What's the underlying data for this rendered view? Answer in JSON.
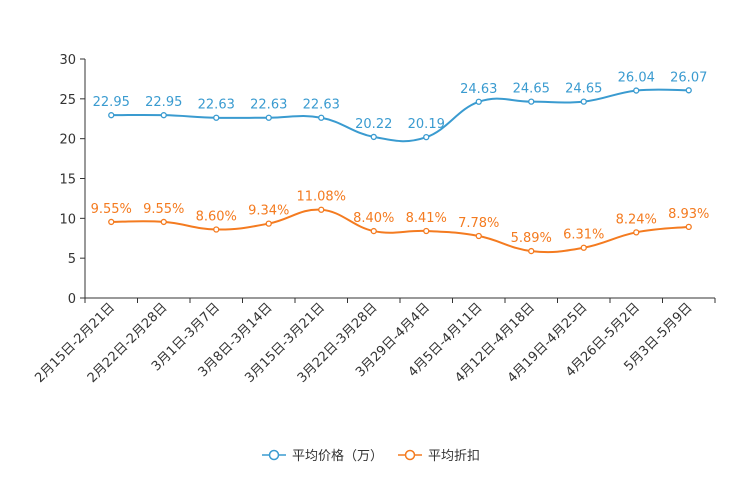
{
  "chart_data": {
    "type": "line",
    "categories": [
      "2月15日-2月21日",
      "2月22日-2月28日",
      "3月1日-3月7日",
      "3月8日-3月14日",
      "3月15日-3月21日",
      "3月22日-3月28日",
      "3月29日-4月4日",
      "4月5日-4月11日",
      "4月12日-4月18日",
      "4月19日-4月25日",
      "4月26日-5月2日",
      "5月3日-5月9日"
    ],
    "ylim": [
      0,
      30
    ],
    "yticks": [
      0,
      5,
      10,
      15,
      20,
      25,
      30
    ],
    "series": [
      {
        "name": "平均价格（万）",
        "color": "#3a9bd0",
        "values": [
          22.95,
          22.95,
          22.63,
          22.63,
          22.63,
          20.22,
          20.19,
          24.63,
          24.65,
          24.65,
          26.04,
          26.07
        ],
        "labels": [
          "22.95",
          "22.95",
          "22.63",
          "22.63",
          "22.63",
          "20.22",
          "20.19",
          "24.63",
          "24.65",
          "24.65",
          "26.04",
          "26.07"
        ]
      },
      {
        "name": "平均折扣",
        "color": "#f47b20",
        "values": [
          9.55,
          9.55,
          8.6,
          9.34,
          11.08,
          8.4,
          8.41,
          7.78,
          5.89,
          6.31,
          8.24,
          8.93
        ],
        "labels": [
          "9.55%",
          "9.55%",
          "8.60%",
          "9.34%",
          "11.08%",
          "8.40%",
          "8.41%",
          "7.78%",
          "5.89%",
          "6.31%",
          "8.24%",
          "8.93%"
        ]
      }
    ],
    "legend_position": "bottom-center"
  }
}
